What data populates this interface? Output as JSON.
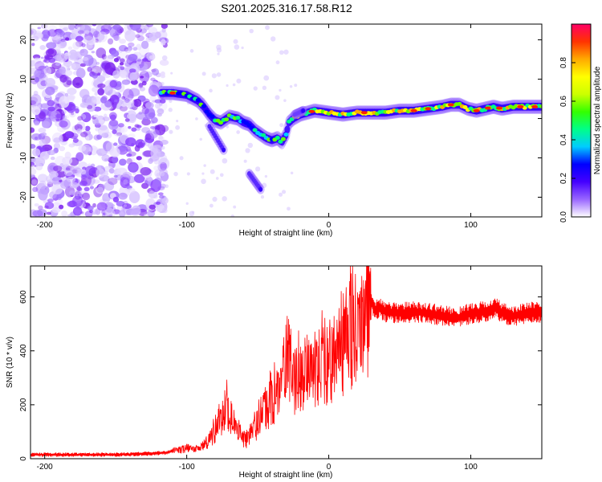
{
  "title": "S201.2025.316.17.58.R12",
  "chart_data": [
    {
      "type": "heatmap",
      "title": "",
      "xlabel": "Height of straight line (km)",
      "ylabel": "Frequency (Hz)",
      "xlim": [
        -210,
        150
      ],
      "ylim": [
        -25,
        24
      ],
      "xticks": [
        -200,
        -100,
        0,
        100
      ],
      "xtick_labels": [
        "-200",
        "-100",
        "0",
        "100"
      ],
      "yticks": [
        20,
        10,
        0,
        -10,
        -20
      ],
      "ytick_labels": [
        "20",
        "10",
        "0",
        "-10",
        "-20"
      ],
      "ridge": {
        "x": [
          -118,
          -110,
          -100,
          -92,
          -88,
          -84,
          -80,
          -76,
          -70,
          -64,
          -60,
          -56,
          -52,
          -48,
          -44,
          -40,
          -36,
          -33,
          -30,
          -28,
          -25,
          -20,
          -10,
          0,
          10,
          20,
          30,
          40,
          50,
          60,
          70,
          80,
          86,
          92,
          98,
          104,
          110,
          116,
          122,
          130,
          140,
          150
        ],
        "y": [
          6.5,
          6.5,
          6.0,
          4.5,
          3.0,
          1.0,
          -0.5,
          -1.0,
          0.5,
          0.0,
          -1.0,
          -1.5,
          -3.0,
          -4.0,
          -5.0,
          -5.5,
          -5.0,
          -6.0,
          -4.0,
          -1.0,
          0.0,
          1.0,
          2.0,
          1.5,
          1.0,
          1.5,
          1.5,
          1.5,
          2.0,
          2.0,
          2.5,
          3.0,
          3.5,
          3.5,
          2.5,
          2.0,
          2.5,
          3.0,
          2.5,
          3.0,
          3.0,
          3.0
        ]
      },
      "side_features": [
        {
          "x": [
            -84,
            -74
          ],
          "y": [
            -2,
            -8
          ]
        },
        {
          "x": [
            -56,
            -48
          ],
          "y": [
            -14,
            -18
          ]
        },
        {
          "x": [
            -24,
            -18
          ],
          "y": [
            1,
            2
          ]
        }
      ],
      "colorbar": {
        "label": "Normalized spectral amplitude",
        "range": [
          0.0,
          1.0
        ],
        "ticks": [
          0.0,
          0.2,
          0.4,
          0.6,
          0.8
        ],
        "tick_labels": [
          "0.0",
          "0.2",
          "0.4",
          "0.6",
          "0.8"
        ],
        "colors": [
          "#ffffff",
          "#9966ff",
          "#4400ff",
          "#0000ff",
          "#00ccff",
          "#00ff88",
          "#33ff00",
          "#ccff00",
          "#ffff00",
          "#ffaa00",
          "#ff3300",
          "#ff0066"
        ]
      }
    },
    {
      "type": "line",
      "title": "",
      "xlabel": "Height of straight line (km)",
      "ylabel": "SNR (10 * v/v)",
      "xlim": [
        -210,
        150
      ],
      "ylim": [
        0,
        715
      ],
      "xticks": [
        -200,
        -100,
        0,
        100
      ],
      "xtick_labels": [
        "-200",
        "-100",
        "0",
        "100"
      ],
      "yticks": [
        0,
        200,
        400,
        600
      ],
      "ytick_labels": [
        "0",
        "200",
        "400",
        "600"
      ],
      "series": [
        {
          "name": "SNR",
          "color": "#ff0000",
          "x": [
            -210,
            -180,
            -150,
            -130,
            -115,
            -105,
            -100,
            -95,
            -90,
            -85,
            -80,
            -75,
            -72,
            -70,
            -66,
            -62,
            -58,
            -55,
            -50,
            -45,
            -40,
            -36,
            -32,
            -30,
            -27,
            -25,
            -20,
            -15,
            -10,
            -5,
            0,
            5,
            10,
            15,
            18,
            20,
            25,
            28,
            30,
            33,
            35,
            40,
            50,
            60,
            70,
            80,
            90,
            100,
            110,
            118,
            122,
            130,
            140,
            150
          ],
          "y": [
            15,
            15,
            15,
            18,
            22,
            35,
            45,
            35,
            40,
            70,
            110,
            160,
            200,
            170,
            120,
            90,
            70,
            100,
            140,
            190,
            230,
            260,
            300,
            380,
            330,
            310,
            330,
            350,
            340,
            370,
            360,
            400,
            440,
            480,
            500,
            460,
            530,
            560,
            580,
            550,
            560,
            545,
            540,
            545,
            540,
            530,
            520,
            540,
            545,
            560,
            540,
            530,
            540,
            545
          ]
        }
      ]
    }
  ]
}
